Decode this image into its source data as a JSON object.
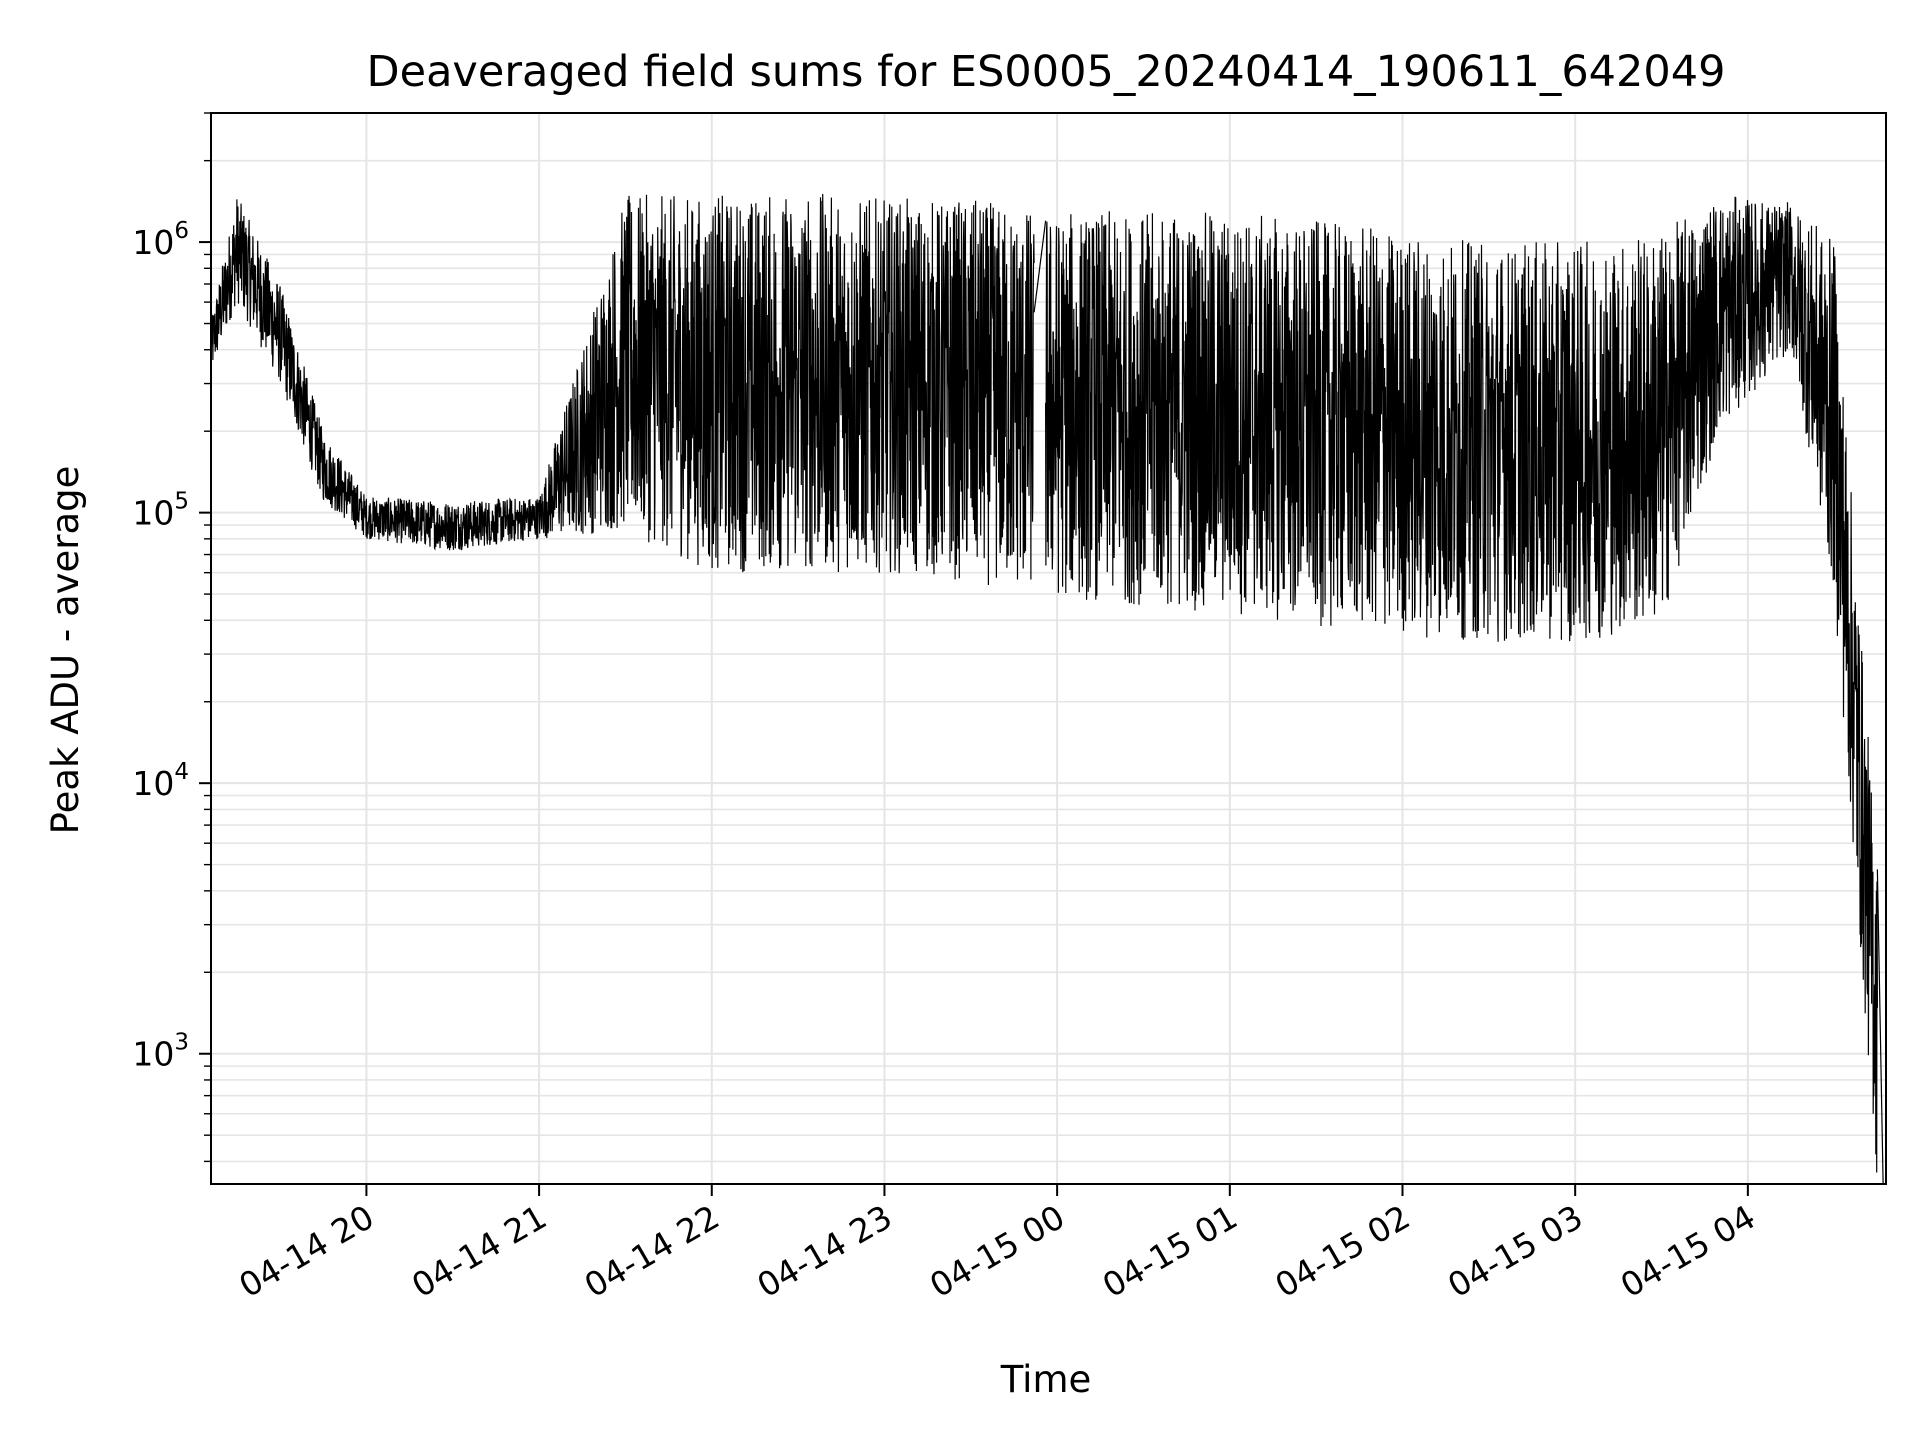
{
  "chart_data": {
    "type": "line",
    "title": "Deaveraged field sums for ES0005_20240414_190611_642049",
    "xlabel": "Time",
    "ylabel": "Peak ADU - average",
    "yscale": "log",
    "ylim": [
      330,
      3000000
    ],
    "xlim": [
      "2024-04-14 19:06",
      "2024-04-15 04:48"
    ],
    "grid": true,
    "line_color": "#000000",
    "grid_color": "#e5e5e5",
    "x_ticks": [
      {
        "value": "2024-04-14 20:00",
        "label": "04-14 20"
      },
      {
        "value": "2024-04-14 21:00",
        "label": "04-14 21"
      },
      {
        "value": "2024-04-14 22:00",
        "label": "04-14 22"
      },
      {
        "value": "2024-04-14 23:00",
        "label": "04-14 23"
      },
      {
        "value": "2024-04-15 00:00",
        "label": "04-15 00"
      },
      {
        "value": "2024-04-15 01:00",
        "label": "04-15 01"
      },
      {
        "value": "2024-04-15 02:00",
        "label": "04-15 02"
      },
      {
        "value": "2024-04-15 03:00",
        "label": "04-15 03"
      },
      {
        "value": "2024-04-15 04:00",
        "label": "04-15 04"
      }
    ],
    "y_ticks": [
      {
        "value": 1000,
        "base": "10",
        "exp": "3"
      },
      {
        "value": 10000,
        "base": "10",
        "exp": "4"
      },
      {
        "value": 100000,
        "base": "10",
        "exp": "5"
      },
      {
        "value": 1000000,
        "base": "10",
        "exp": "6"
      }
    ],
    "series": [
      {
        "segments": [
          {
            "start": "2024-04-14 19:06",
            "end": "2024-04-14 23:52",
            "description_free": true
          },
          {
            "start": "2024-04-14 23:56",
            "end": "2024-04-15 04:45",
            "description_free": true
          }
        ],
        "envelope": [
          {
            "t": "2024-04-14 19:06",
            "low": 320000,
            "high": 520000
          },
          {
            "t": "2024-04-14 19:15",
            "low": 600000,
            "high": 1500000
          },
          {
            "t": "2024-04-14 19:30",
            "low": 300000,
            "high": 700000
          },
          {
            "t": "2024-04-14 19:45",
            "low": 110000,
            "high": 200000
          },
          {
            "t": "2024-04-14 20:00",
            "low": 80000,
            "high": 115000
          },
          {
            "t": "2024-04-14 20:30",
            "low": 72000,
            "high": 110000
          },
          {
            "t": "2024-04-14 21:00",
            "low": 80000,
            "high": 115000
          },
          {
            "t": "2024-04-14 21:30",
            "low": 85000,
            "high": 1500000
          },
          {
            "t": "2024-04-14 22:00",
            "low": 60000,
            "high": 1500000
          },
          {
            "t": "2024-04-14 22:30",
            "low": 60000,
            "high": 1550000
          },
          {
            "t": "2024-04-14 23:00",
            "low": 60000,
            "high": 1450000
          },
          {
            "t": "2024-04-14 23:30",
            "low": 55000,
            "high": 1450000
          },
          {
            "t": "2024-04-15 00:00",
            "low": 48000,
            "high": 1300000
          },
          {
            "t": "2024-04-15 00:30",
            "low": 45000,
            "high": 1300000
          },
          {
            "t": "2024-04-15 01:00",
            "low": 42000,
            "high": 1300000
          },
          {
            "t": "2024-04-15 01:30",
            "low": 38000,
            "high": 1200000
          },
          {
            "t": "2024-04-15 02:00",
            "low": 35000,
            "high": 1100000
          },
          {
            "t": "2024-04-15 02:30",
            "low": 33000,
            "high": 1000000
          },
          {
            "t": "2024-04-15 03:00",
            "low": 33000,
            "high": 1000000
          },
          {
            "t": "2024-04-15 03:30",
            "low": 38000,
            "high": 1100000
          },
          {
            "t": "2024-04-15 03:50",
            "low": 200000,
            "high": 1500000
          },
          {
            "t": "2024-04-15 04:15",
            "low": 400000,
            "high": 1400000
          },
          {
            "t": "2024-04-15 04:30",
            "low": 50000,
            "high": 1000000
          },
          {
            "t": "2024-04-15 04:45",
            "low": 330,
            "high": 4800
          }
        ]
      }
    ]
  }
}
